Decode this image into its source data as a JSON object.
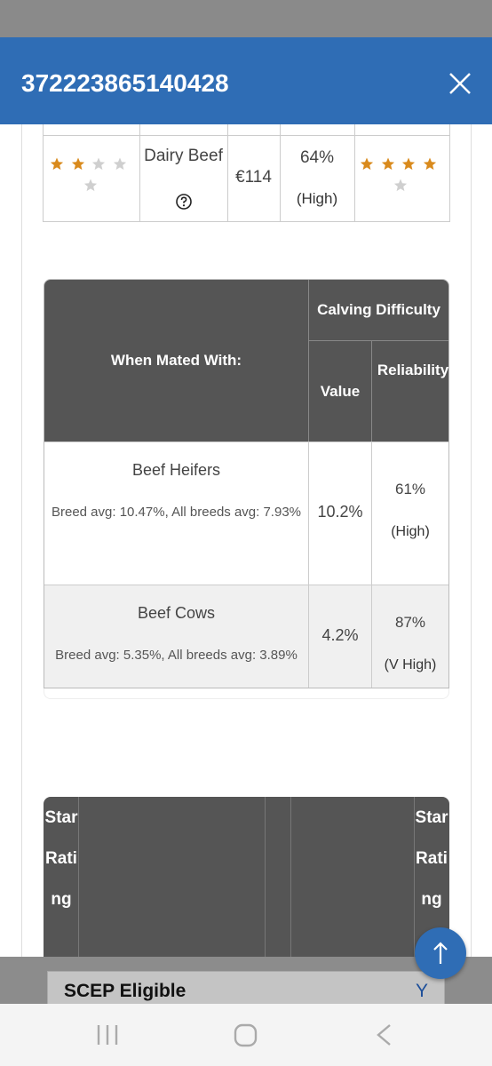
{
  "header": {
    "title": "372223865140428"
  },
  "summary_row": {
    "stars_left": 2,
    "breed": "Dairy Beef",
    "value": "€114",
    "reliability": "64%",
    "reliability_level": "(High)",
    "stars_right": 4
  },
  "calving_table": {
    "header": {
      "mated_with": "When Mated With:",
      "group": "Calving Difficulty",
      "value": "Value",
      "reliability": "Reliability"
    },
    "rows": [
      {
        "label": "Beef Heifers",
        "note": "Breed avg: 10.47%, All breeds avg: 7.93%",
        "value": "10.2%",
        "reliability": "61%",
        "level": "(High)"
      },
      {
        "label": "Beef Cows",
        "note": "Breed avg: 5.35%, All breeds avg: 3.89%",
        "value": "4.2%",
        "reliability": "87%",
        "level": "(V High)"
      }
    ]
  },
  "star_table": {
    "header": [
      "Star Rating",
      "Star Rating"
    ]
  },
  "sticky_row": {
    "label": "SCEP Eligible",
    "value": "Y"
  }
}
